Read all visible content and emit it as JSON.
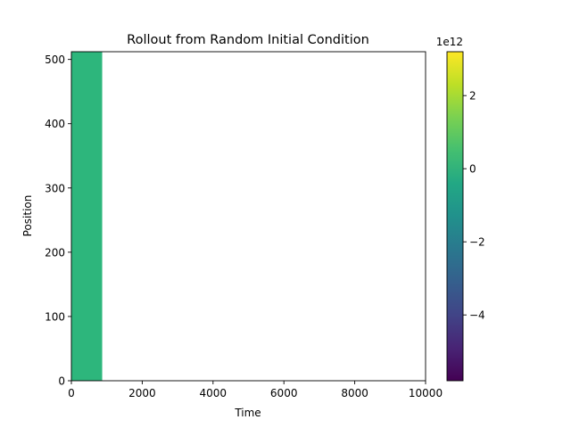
{
  "chart_data": {
    "type": "heatmap",
    "title": "Rollout from Random Initial Condition",
    "xlabel": "Time",
    "ylabel": "Position",
    "xlim": [
      0,
      10000
    ],
    "ylim": [
      0,
      512
    ],
    "x_ticks": [
      0,
      2000,
      4000,
      6000,
      8000,
      10000
    ],
    "x_tick_labels": [
      "0",
      "2000",
      "4000",
      "6000",
      "8000",
      "10000"
    ],
    "y_ticks": [
      0,
      100,
      200,
      300,
      400,
      500
    ],
    "y_tick_labels": [
      "0",
      "100",
      "200",
      "300",
      "400",
      "500"
    ],
    "filled_region": {
      "x_start": 0,
      "x_end": 870,
      "y_start": 0,
      "y_end": 512,
      "value": 0
    },
    "grid": false,
    "colorbar": {
      "colormap": "viridis",
      "vmin": -5800000000000.0,
      "vmax": 3200000000000.0,
      "ticks": [
        -4000000000000.0,
        -2000000000000.0,
        0,
        2000000000000.0
      ],
      "tick_labels": [
        "−4",
        "−2",
        "0",
        "2"
      ],
      "offset_label": "1e12"
    }
  },
  "colors": {
    "fill": "#2db67c",
    "axes": "#000000",
    "background": "#ffffff"
  }
}
